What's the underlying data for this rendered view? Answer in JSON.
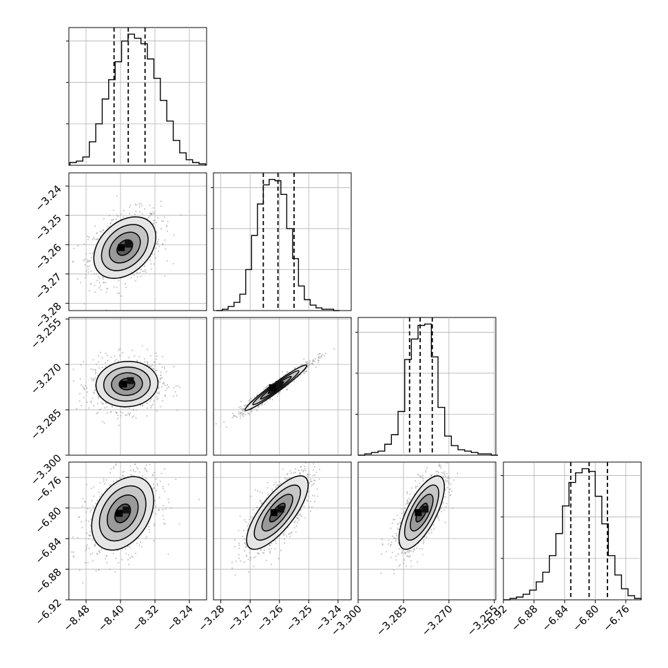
{
  "chart_data": {
    "type": "corner",
    "description_of_panels": "lower-triangle 2D histograms with contours; diagonal 1D histograms with quantile lines",
    "grid": true,
    "colors": {
      "points": "#9a9a9a",
      "contour": "#000000",
      "grid": "#b0b0b0",
      "hist": "#000000"
    },
    "quantiles": [
      0.16,
      0.5,
      0.84
    ],
    "parameters": [
      {
        "range": [
          -8.52,
          -8.2
        ],
        "ticks": [
          "-8.48",
          "-8.40",
          "-8.32",
          "-8.24"
        ],
        "tick_values": [
          -8.48,
          -8.4,
          -8.32,
          -8.24
        ],
        "median": -8.382,
        "q16": -8.415,
        "q84": -8.343,
        "hist_centers": [
          -8.51,
          -8.495,
          -8.48,
          -8.465,
          -8.45,
          -8.435,
          -8.42,
          -8.405,
          -8.39,
          -8.375,
          -8.36,
          -8.345,
          -8.33,
          -8.315,
          -8.3,
          -8.285,
          -8.27,
          -8.255,
          -8.24,
          -8.225,
          -8.21
        ],
        "hist_counts": [
          2,
          3,
          6,
          17,
          30,
          48,
          62,
          75,
          90,
          95,
          92,
          88,
          77,
          63,
          47,
          32,
          18,
          9,
          4,
          2,
          1
        ]
      },
      {
        "range": [
          -3.2825,
          -3.2355
        ],
        "ticks": [
          "-3.28",
          "-3.27",
          "-3.26",
          "-3.25",
          "-3.24"
        ],
        "tick_values": [
          -3.28,
          -3.27,
          -3.26,
          -3.25,
          -3.24
        ],
        "median": -3.2605,
        "q16": -3.2655,
        "q84": -3.255,
        "hist_centers": [
          -3.2805,
          -3.2785,
          -3.2765,
          -3.2745,
          -3.2725,
          -3.2705,
          -3.2685,
          -3.2665,
          -3.2645,
          -3.2625,
          -3.2605,
          -3.2585,
          -3.2565,
          -3.2545,
          -3.2525,
          -3.2505,
          -3.2485,
          -3.2465,
          -3.2445,
          -3.2425,
          -3.2405
        ],
        "hist_counts": [
          0,
          1,
          3,
          6,
          12,
          30,
          55,
          78,
          92,
          96,
          95,
          85,
          60,
          38,
          18,
          8,
          4,
          2,
          1,
          1,
          0
        ]
      },
      {
        "range": [
          -3.3,
          -3.2545
        ],
        "ticks": [
          "-3.300",
          "-3.285",
          "-3.270",
          "-3.255"
        ],
        "tick_values": [
          -3.3,
          -3.285,
          -3.27,
          -3.255
        ],
        "median": -3.2795,
        "q16": -3.283,
        "q84": -3.2755,
        "hist_centers": [
          -3.2989,
          -3.2967,
          -3.2945,
          -3.2923,
          -3.2901,
          -3.2879,
          -3.2857,
          -3.2835,
          -3.2813,
          -3.2791,
          -3.2769,
          -3.2747,
          -3.2725,
          -3.2703,
          -3.2681,
          -3.2659,
          -3.2637,
          -3.2615,
          -3.2593,
          -3.2571,
          -3.2549
        ],
        "hist_counts": [
          0,
          1,
          2,
          3,
          8,
          15,
          32,
          70,
          85,
          95,
          96,
          72,
          35,
          14,
          7,
          4,
          3,
          2,
          1,
          1,
          0
        ]
      },
      {
        "range": [
          -6.92,
          -6.74
        ],
        "ticks": [
          "-6.92",
          "-6.88",
          "-6.84",
          "-6.80",
          "-6.76"
        ],
        "tick_values": [
          -6.92,
          -6.88,
          -6.84,
          -6.8,
          -6.76
        ],
        "y_ticks": [
          "-6.76",
          "-6.80",
          "-6.84",
          "-6.88",
          "-6.92"
        ],
        "median": -6.808,
        "q16": -6.832,
        "q84": -6.784,
        "hist_centers": [
          -6.9157,
          -6.9071,
          -6.8986,
          -6.89,
          -6.8814,
          -6.8729,
          -6.8643,
          -6.8557,
          -6.8471,
          -6.8386,
          -6.83,
          -6.8214,
          -6.8129,
          -6.8043,
          -6.7957,
          -6.7871,
          -6.7786,
          -6.77,
          -6.7614,
          -6.7529,
          -6.7443
        ],
        "hist_counts": [
          0,
          1,
          2,
          4,
          7,
          13,
          20,
          32,
          48,
          68,
          85,
          92,
          95,
          93,
          75,
          55,
          32,
          18,
          8,
          3,
          1
        ]
      }
    ],
    "correlations": [
      [
        0,
        1,
        0.35
      ],
      [
        0,
        2,
        0.05
      ],
      [
        0,
        3,
        0.35
      ],
      [
        1,
        2,
        0.97
      ],
      [
        1,
        3,
        0.75
      ],
      [
        2,
        3,
        0.7
      ]
    ],
    "pair_centers": {
      "0-1": [
        -8.39,
        -3.261
      ],
      "0-2": [
        -8.385,
        -3.2765
      ],
      "0-3": [
        -8.395,
        -6.807
      ],
      "1-2": [
        -3.2612,
        -3.2777
      ],
      "1-3": [
        -3.2607,
        -6.806
      ],
      "2-3": [
        -3.279,
        -6.806
      ]
    },
    "y_tick_labels": {
      "row1": [
        "-3.24",
        "-3.25",
        "-3.26",
        "-3.27",
        "-3.28"
      ],
      "row2": [
        "-3.255",
        "-3.270",
        "-3.285",
        "-3.300"
      ],
      "row3": [
        "-6.76",
        "-6.80",
        "-6.84",
        "-6.88",
        "-6.92"
      ]
    },
    "x_tick_labels": {
      "col0": [
        "-8.48",
        "-8.40",
        "-8.32",
        "-8.24"
      ],
      "col1": [
        "-3.28",
        "-3.27",
        "-3.26",
        "-3.25",
        "-3.24"
      ],
      "col2": [
        "-3.300",
        "-3.285",
        "-3.270",
        "-3.255"
      ],
      "col3": [
        "-6.92",
        "-6.88",
        "-6.84",
        "-6.80",
        "-6.76"
      ]
    }
  }
}
